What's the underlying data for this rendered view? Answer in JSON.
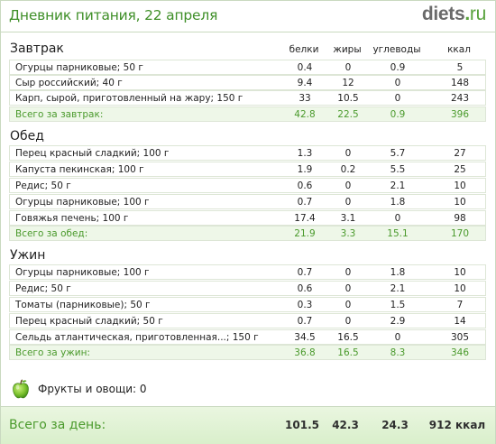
{
  "header": {
    "title": "Дневник питания, 22 апреля",
    "logo_main": "diets",
    "logo_dot": ".",
    "logo_tld": "ru"
  },
  "columns": {
    "protein": "белки",
    "fat": "жиры",
    "carbs": "углеводы",
    "kcal": "ккал"
  },
  "sections": [
    {
      "title": "Завтрак",
      "rows": [
        {
          "name": "Огурцы парниковые; 50 г",
          "protein": "0.4",
          "fat": "0",
          "carbs": "0.9",
          "kcal": "5"
        },
        {
          "name": "Сыр российский; 40 г",
          "protein": "9.4",
          "fat": "12",
          "carbs": "0",
          "kcal": "148"
        },
        {
          "name": "Карп, сырой, приготовленный на жару; 150 г",
          "protein": "33",
          "fat": "10.5",
          "carbs": "0",
          "kcal": "243"
        }
      ],
      "total": {
        "name": "Всего за завтрак:",
        "protein": "42.8",
        "fat": "22.5",
        "carbs": "0.9",
        "kcal": "396"
      }
    },
    {
      "title": "Обед",
      "rows": [
        {
          "name": "Перец красный сладкий; 100 г",
          "protein": "1.3",
          "fat": "0",
          "carbs": "5.7",
          "kcal": "27"
        },
        {
          "name": "Капуста пекинская; 100 г",
          "protein": "1.9",
          "fat": "0.2",
          "carbs": "5.5",
          "kcal": "25"
        },
        {
          "name": "Редис; 50 г",
          "protein": "0.6",
          "fat": "0",
          "carbs": "2.1",
          "kcal": "10"
        },
        {
          "name": "Огурцы парниковые; 100 г",
          "protein": "0.7",
          "fat": "0",
          "carbs": "1.8",
          "kcal": "10"
        },
        {
          "name": "Говяжья печень; 100 г",
          "protein": "17.4",
          "fat": "3.1",
          "carbs": "0",
          "kcal": "98"
        }
      ],
      "total": {
        "name": "Всего за обед:",
        "protein": "21.9",
        "fat": "3.3",
        "carbs": "15.1",
        "kcal": "170"
      }
    },
    {
      "title": "Ужин",
      "rows": [
        {
          "name": "Огурцы парниковые; 100 г",
          "protein": "0.7",
          "fat": "0",
          "carbs": "1.8",
          "kcal": "10"
        },
        {
          "name": "Редис; 50 г",
          "protein": "0.6",
          "fat": "0",
          "carbs": "2.1",
          "kcal": "10"
        },
        {
          "name": "Томаты (парниковые); 50 г",
          "protein": "0.3",
          "fat": "0",
          "carbs": "1.5",
          "kcal": "7"
        },
        {
          "name": "Перец красный сладкий; 50 г",
          "protein": "0.7",
          "fat": "0",
          "carbs": "2.9",
          "kcal": "14"
        },
        {
          "name": "Сельдь атлантическая, приготовленная...; 150 г",
          "protein": "34.5",
          "fat": "16.5",
          "carbs": "0",
          "kcal": "305"
        }
      ],
      "total": {
        "name": "Всего за ужин:",
        "protein": "36.8",
        "fat": "16.5",
        "carbs": "8.3",
        "kcal": "346"
      }
    }
  ],
  "fruits": {
    "icon": "apple-icon",
    "label": "Фрукты и овощи: 0"
  },
  "day_total": {
    "label": "Всего за день:",
    "protein": "101.5",
    "fat": "42.3",
    "carbs": "24.3",
    "kcal": "912 ккал"
  },
  "colors": {
    "accent": "#3f8f28",
    "total_text": "#4a9a2c",
    "total_bg": "#eef7e8",
    "border": "#c9d9c0"
  }
}
